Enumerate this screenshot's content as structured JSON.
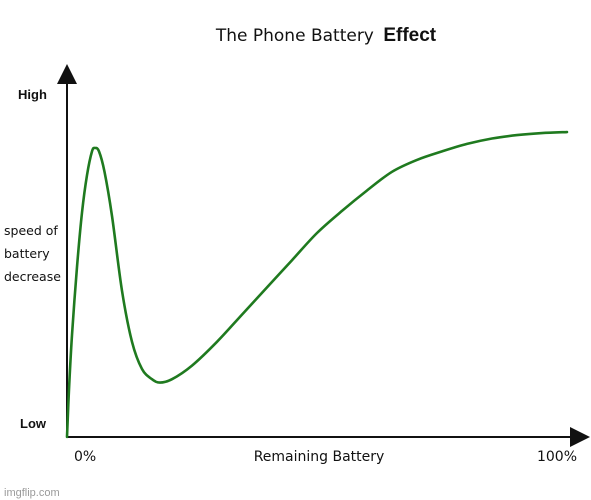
{
  "chart_data": {
    "type": "line",
    "title_parts": [
      "The Phone Battery",
      "Effect"
    ],
    "ylabel_lines": [
      "speed of",
      "battery",
      "decrease"
    ],
    "ytick_high": "High",
    "ytick_low": "Low",
    "xtick_left": "0%",
    "xlabel": "Remaining Battery",
    "xtick_right": "100%",
    "xlim": [
      0,
      100
    ],
    "ylim": [
      0,
      100
    ],
    "grid": false,
    "series_color": "#1f7a1f",
    "series": [
      {
        "points": [
          [
            0,
            0
          ],
          [
            0.4,
            14
          ],
          [
            1,
            30
          ],
          [
            2,
            50
          ],
          [
            3,
            66
          ],
          [
            4,
            77
          ],
          [
            5,
            84
          ],
          [
            5.6,
            85
          ],
          [
            6.4,
            84
          ],
          [
            7.5,
            78
          ],
          [
            9,
            65
          ],
          [
            11,
            43
          ],
          [
            13,
            28
          ],
          [
            15,
            20
          ],
          [
            17,
            17
          ],
          [
            18.6,
            16
          ],
          [
            21,
            17
          ],
          [
            25,
            21
          ],
          [
            30,
            28
          ],
          [
            35,
            36
          ],
          [
            40,
            44
          ],
          [
            45,
            52
          ],
          [
            50,
            60
          ],
          [
            55,
            66.5
          ],
          [
            60,
            72.5
          ],
          [
            65,
            78
          ],
          [
            70,
            81.5
          ],
          [
            75,
            84
          ],
          [
            80,
            86.2
          ],
          [
            85,
            87.8
          ],
          [
            90,
            88.8
          ],
          [
            95,
            89.4
          ],
          [
            100,
            89.7
          ]
        ]
      }
    ]
  },
  "watermark": "imgflip.com"
}
